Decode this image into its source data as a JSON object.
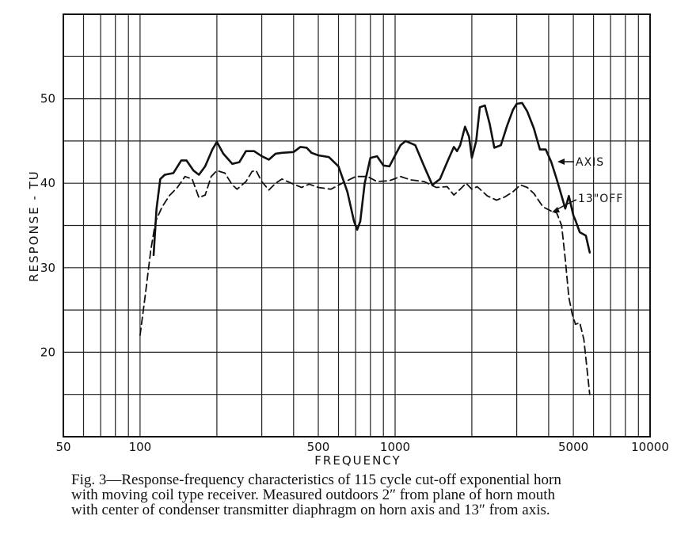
{
  "chart_data": {
    "type": "line",
    "xscale": "log",
    "xlim": [
      50,
      10000
    ],
    "ylim": [
      10,
      60
    ],
    "grid": true,
    "xlabel": "FREQUENCY",
    "ylabel": "RESPONSE - TU",
    "x_tick_labels": [
      {
        "value": 50,
        "label": "50"
      },
      {
        "value": 100,
        "label": "100"
      },
      {
        "value": 500,
        "label": "500"
      },
      {
        "value": 1000,
        "label": "1000"
      },
      {
        "value": 5000,
        "label": "5000"
      },
      {
        "value": 10000,
        "label": "10000"
      }
    ],
    "y_tick_labels": [
      {
        "value": 20,
        "label": "20"
      },
      {
        "value": 30,
        "label": "30"
      },
      {
        "value": 40,
        "label": "40"
      },
      {
        "value": 50,
        "label": "50"
      }
    ],
    "series": [
      {
        "name": "AXIS",
        "style": "solid",
        "points": [
          [
            113,
            31.5
          ],
          [
            116,
            37
          ],
          [
            120,
            40.5
          ],
          [
            125,
            41
          ],
          [
            135,
            41.2
          ],
          [
            145,
            42.7
          ],
          [
            152,
            42.7
          ],
          [
            162,
            41.5
          ],
          [
            170,
            41
          ],
          [
            180,
            42
          ],
          [
            192,
            44
          ],
          [
            200,
            44.9
          ],
          [
            212,
            43.5
          ],
          [
            230,
            42.3
          ],
          [
            245,
            42.5
          ],
          [
            260,
            43.8
          ],
          [
            280,
            43.8
          ],
          [
            300,
            43.2
          ],
          [
            320,
            42.8
          ],
          [
            340,
            43.5
          ],
          [
            360,
            43.6
          ],
          [
            400,
            43.7
          ],
          [
            425,
            44.3
          ],
          [
            450,
            44.2
          ],
          [
            470,
            43.6
          ],
          [
            500,
            43.3
          ],
          [
            550,
            43.1
          ],
          [
            600,
            42
          ],
          [
            650,
            39
          ],
          [
            690,
            35.5
          ],
          [
            710,
            34.5
          ],
          [
            730,
            35.5
          ],
          [
            760,
            40
          ],
          [
            800,
            43
          ],
          [
            850,
            43.2
          ],
          [
            900,
            42.1
          ],
          [
            950,
            42
          ],
          [
            1000,
            43.3
          ],
          [
            1050,
            44.5
          ],
          [
            1100,
            45
          ],
          [
            1200,
            44.5
          ],
          [
            1300,
            42
          ],
          [
            1400,
            39.8
          ],
          [
            1500,
            40.5
          ],
          [
            1600,
            42.5
          ],
          [
            1700,
            44.3
          ],
          [
            1750,
            43.8
          ],
          [
            1800,
            44.5
          ],
          [
            1880,
            46.7
          ],
          [
            1950,
            45.5
          ],
          [
            2000,
            43
          ],
          [
            2080,
            45
          ],
          [
            2150,
            49
          ],
          [
            2250,
            49.2
          ],
          [
            2350,
            47
          ],
          [
            2450,
            44.2
          ],
          [
            2600,
            44.5
          ],
          [
            2750,
            46.8
          ],
          [
            2900,
            48.7
          ],
          [
            3000,
            49.4
          ],
          [
            3150,
            49.5
          ],
          [
            3300,
            48.5
          ],
          [
            3500,
            46.5
          ],
          [
            3700,
            44
          ],
          [
            3900,
            44
          ],
          [
            4100,
            42.5
          ],
          [
            4300,
            40.5
          ],
          [
            4500,
            38.5
          ],
          [
            4650,
            37
          ],
          [
            4800,
            38.5
          ],
          [
            5000,
            36.2
          ],
          [
            5100,
            35.6
          ],
          [
            5300,
            34.2
          ],
          [
            5600,
            33.8
          ],
          [
            5800,
            31.8
          ]
        ]
      },
      {
        "name": "13\"OFF",
        "style": "dashed",
        "points": [
          [
            100,
            22
          ],
          [
            105,
            27
          ],
          [
            110,
            32
          ],
          [
            115,
            35.5
          ],
          [
            122,
            37.2
          ],
          [
            130,
            38.5
          ],
          [
            140,
            39.5
          ],
          [
            150,
            40.8
          ],
          [
            160,
            40.5
          ],
          [
            170,
            38.3
          ],
          [
            180,
            38.6
          ],
          [
            190,
            40.8
          ],
          [
            200,
            41.5
          ],
          [
            215,
            41.2
          ],
          [
            230,
            39.8
          ],
          [
            240,
            39.3
          ],
          [
            260,
            40.2
          ],
          [
            275,
            41.4
          ],
          [
            285,
            41.5
          ],
          [
            300,
            40.2
          ],
          [
            320,
            39.2
          ],
          [
            340,
            40
          ],
          [
            360,
            40.5
          ],
          [
            400,
            39.9
          ],
          [
            430,
            39.5
          ],
          [
            460,
            39.9
          ],
          [
            500,
            39.5
          ],
          [
            560,
            39.3
          ],
          [
            620,
            40
          ],
          [
            700,
            40.8
          ],
          [
            780,
            40.8
          ],
          [
            850,
            40.2
          ],
          [
            950,
            40.3
          ],
          [
            1050,
            40.8
          ],
          [
            1150,
            40.4
          ],
          [
            1300,
            40.2
          ],
          [
            1450,
            39.5
          ],
          [
            1600,
            39.6
          ],
          [
            1700,
            38.6
          ],
          [
            1800,
            39.3
          ],
          [
            1900,
            40
          ],
          [
            2000,
            39.3
          ],
          [
            2100,
            39.6
          ],
          [
            2300,
            38.5
          ],
          [
            2500,
            38
          ],
          [
            2700,
            38.4
          ],
          [
            2900,
            39
          ],
          [
            3100,
            39.8
          ],
          [
            3300,
            39.5
          ],
          [
            3500,
            38.8
          ],
          [
            3800,
            37.2
          ],
          [
            4100,
            36.7
          ],
          [
            4300,
            36.5
          ],
          [
            4500,
            35
          ],
          [
            4650,
            31
          ],
          [
            4800,
            26.5
          ],
          [
            4950,
            24.5
          ],
          [
            5100,
            23.3
          ],
          [
            5300,
            23.5
          ],
          [
            5500,
            21.5
          ],
          [
            5800,
            15
          ]
        ]
      }
    ],
    "annotations": [
      {
        "text": "AXIS",
        "series": "AXIS"
      },
      {
        "text": "13\"OFF",
        "series": "13\"OFF"
      }
    ]
  },
  "caption": {
    "line1": "Fig. 3—Response-frequency characteristics of 115 cycle cut-off exponential horn",
    "line2": "with moving coil type receiver.  Measured outdoors 2″ from plane of horn mouth",
    "line3": "with center of condenser transmitter diaphragm on horn axis and 13″ from axis."
  }
}
